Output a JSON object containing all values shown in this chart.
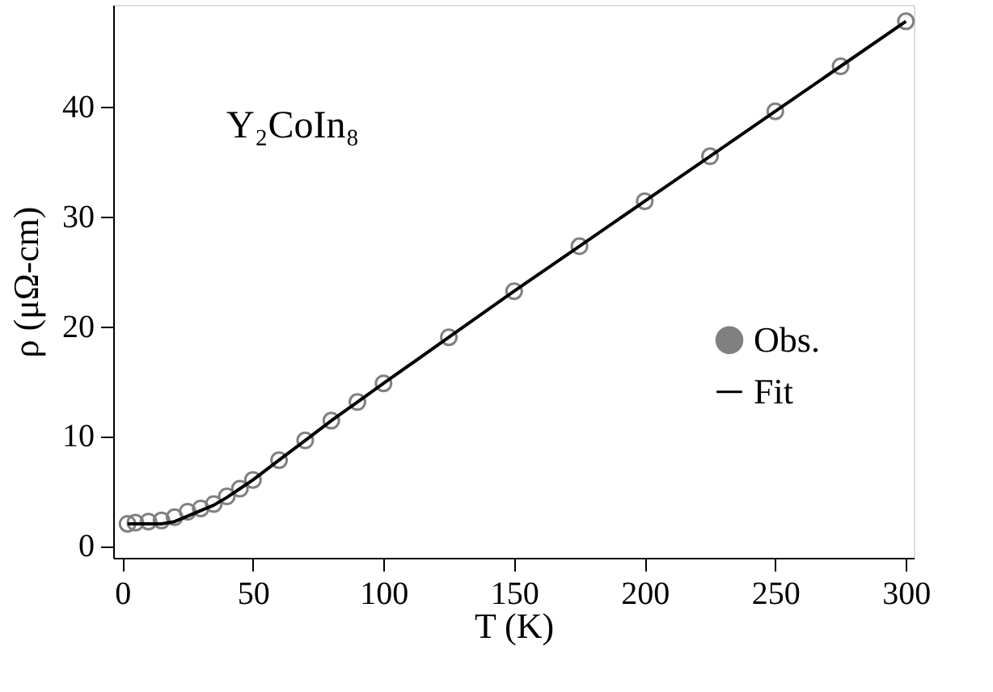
{
  "chart_data": {
    "type": "scatter",
    "xlabel": "T (K)",
    "ylabel": "ρ (μΩ-cm)",
    "annotations": [
      "Y₂CoIn₈"
    ],
    "xlim": [
      -3.5,
      303
    ],
    "ylim": [
      -1.1,
      49.3
    ],
    "xticks": [
      0,
      50,
      100,
      150,
      200,
      250,
      300
    ],
    "yticks": [
      0,
      10,
      20,
      30,
      40
    ],
    "grid": false,
    "legend": "right",
    "series": [
      {
        "name": "Obs.",
        "marker": "circle",
        "color": "#808080",
        "x": [
          2,
          5,
          10,
          15,
          20,
          25,
          30,
          35,
          40,
          45,
          50,
          60,
          70,
          80,
          90,
          100,
          125,
          150,
          175,
          200,
          225,
          250,
          275,
          300
        ],
        "values": [
          2.0,
          2.1,
          2.2,
          2.3,
          2.6,
          3.1,
          3.4,
          3.8,
          4.5,
          5.2,
          6.0,
          7.8,
          9.6,
          11.4,
          13.1,
          14.8,
          19.0,
          23.2,
          27.3,
          31.4,
          35.5,
          39.6,
          43.7,
          47.8
        ]
      },
      {
        "name": "Fit",
        "type": "line",
        "marker": "none",
        "line_style": "solid",
        "color": "#000000",
        "x": [
          2,
          10,
          15,
          20,
          25,
          30,
          35,
          40,
          45,
          50,
          60,
          70,
          80,
          90,
          100,
          125,
          150,
          175,
          200,
          225,
          250,
          275,
          300
        ],
        "values": [
          2.0,
          2.0,
          2.0,
          2.2,
          2.7,
          3.2,
          3.7,
          4.4,
          5.2,
          6.0,
          7.8,
          9.6,
          11.4,
          13.1,
          14.8,
          19.0,
          23.2,
          27.3,
          31.4,
          35.5,
          39.6,
          43.7,
          47.8
        ]
      }
    ]
  }
}
